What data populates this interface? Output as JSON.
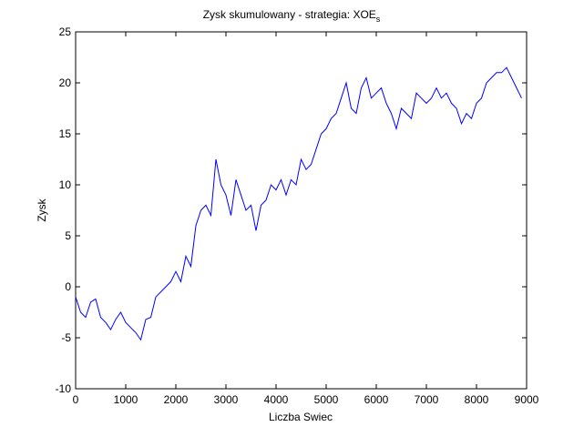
{
  "chart_data": {
    "type": "line",
    "title": "Zysk skumulowany - strategia: XOE",
    "title_subscript": "s",
    "xlabel": "Liczba Swiec",
    "ylabel": "Zysk",
    "x": [
      0,
      100,
      200,
      300,
      400,
      500,
      600,
      700,
      800,
      900,
      1000,
      1100,
      1200,
      1300,
      1400,
      1500,
      1600,
      1700,
      1800,
      1900,
      2000,
      2100,
      2200,
      2300,
      2400,
      2500,
      2600,
      2700,
      2800,
      2900,
      3000,
      3100,
      3200,
      3300,
      3400,
      3500,
      3600,
      3700,
      3800,
      3900,
      4000,
      4100,
      4200,
      4300,
      4400,
      4500,
      4600,
      4700,
      4800,
      4900,
      5000,
      5100,
      5200,
      5300,
      5400,
      5500,
      5600,
      5700,
      5800,
      5900,
      6000,
      6100,
      6200,
      6300,
      6400,
      6500,
      6600,
      6700,
      6800,
      6900,
      7000,
      7100,
      7200,
      7300,
      7400,
      7500,
      7600,
      7700,
      7800,
      7900,
      8000,
      8100,
      8200,
      8300,
      8400,
      8500,
      8600,
      8700,
      8800,
      8900
    ],
    "series": [
      {
        "color": "#0000ff",
        "values": [
          -1,
          -2.5,
          -3,
          -1.5,
          -1.2,
          -3,
          -3.5,
          -4.2,
          -3.2,
          -2.5,
          -3.5,
          -4,
          -4.5,
          -5.2,
          -3.2,
          -3,
          -1,
          -0.5,
          0,
          0.5,
          1.5,
          0.5,
          3,
          2,
          6,
          7.5,
          8,
          7,
          12.5,
          10,
          9,
          7,
          10.5,
          9,
          7.5,
          8,
          5.5,
          8,
          8.5,
          10,
          9.5,
          10.5,
          9,
          10.5,
          10,
          12.5,
          11.5,
          12,
          13.5,
          15,
          15.5,
          16.5,
          17,
          18.5,
          20,
          17.5,
          17,
          19.5,
          20.5,
          18.5,
          19,
          19.5,
          18,
          17,
          15.5,
          17.5,
          17,
          16.5,
          19,
          18.5,
          18,
          18.5,
          19.5,
          18.5,
          19,
          18,
          17.5,
          16,
          17,
          16.5,
          18,
          18.5,
          20,
          20.5,
          21,
          21,
          21.5,
          20.5,
          19.5,
          18.5
        ]
      }
    ],
    "xlim": [
      0,
      9000
    ],
    "xticks": [
      0,
      1000,
      2000,
      3000,
      4000,
      5000,
      6000,
      7000,
      8000,
      9000
    ],
    "ylim": [
      -10,
      25
    ],
    "yticks": [
      -10,
      -5,
      0,
      5,
      10,
      15,
      20,
      25
    ],
    "grid": false
  }
}
